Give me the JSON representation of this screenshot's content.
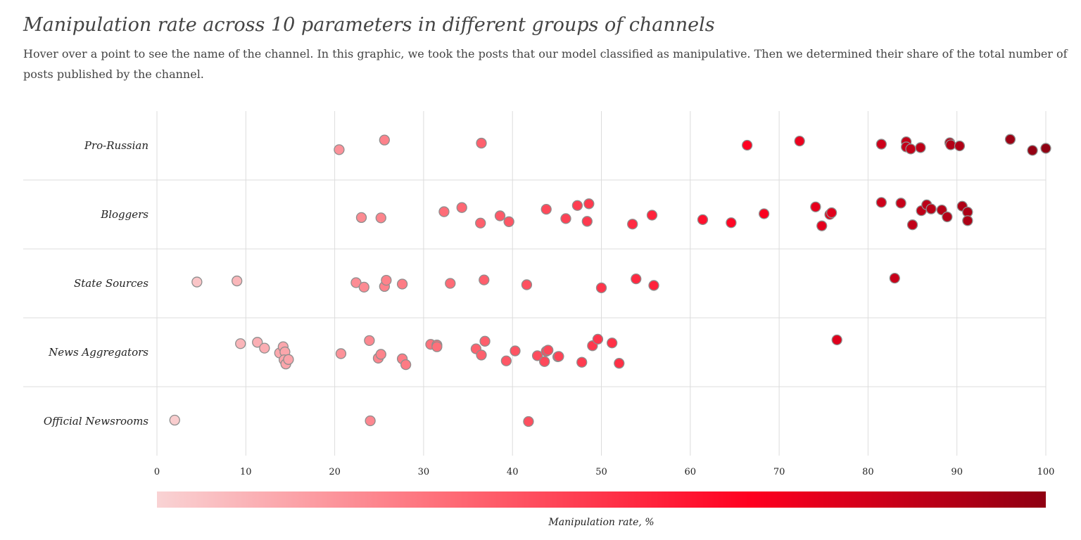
{
  "chart_data": {
    "type": "scatter",
    "title": "Manipulation rate across 10 parameters in different groups of channels",
    "subtitle": "Hover over a point to see the name of the channel. In this graphic, we took the posts that our model classified as manipulative. Then we determined their share of the total number of posts published by the channel.",
    "x_ticks": [
      0,
      10,
      20,
      30,
      40,
      50,
      60,
      70,
      80,
      90,
      100
    ],
    "xlim": [
      0,
      100
    ],
    "grid": true,
    "color_scale": {
      "title": "Manipulation rate, %",
      "stops": [
        "#f9d3d4",
        "#fe6a75",
        "#ff0020",
        "#8f0012"
      ]
    },
    "categories": [
      "Pro-Russian",
      "Bloggers",
      "State Sources",
      "News Aggregators",
      "Official Newsrooms"
    ],
    "series": [
      {
        "category": "Pro-Russian",
        "points": [
          {
            "x": 20.5,
            "jitter": -0.12
          },
          {
            "x": 25.6,
            "jitter": 0.16
          },
          {
            "x": 36.5,
            "jitter": 0.07
          },
          {
            "x": 66.4,
            "jitter": 0.01
          },
          {
            "x": 72.3,
            "jitter": 0.13
          },
          {
            "x": 81.5,
            "jitter": 0.04
          },
          {
            "x": 84.3,
            "jitter": 0.11
          },
          {
            "x": 84.3,
            "jitter": -0.04
          },
          {
            "x": 84.8,
            "jitter": -0.1
          },
          {
            "x": 85.9,
            "jitter": -0.06
          },
          {
            "x": 89.2,
            "jitter": 0.08
          },
          {
            "x": 89.3,
            "jitter": 0.02
          },
          {
            "x": 90.3,
            "jitter": -0.01
          },
          {
            "x": 96.0,
            "jitter": 0.18
          },
          {
            "x": 98.5,
            "jitter": -0.14
          },
          {
            "x": 100.0,
            "jitter": -0.08
          }
        ]
      },
      {
        "category": "Bloggers",
        "points": [
          {
            "x": 23.0,
            "jitter": -0.09
          },
          {
            "x": 25.2,
            "jitter": -0.1
          },
          {
            "x": 32.3,
            "jitter": 0.08
          },
          {
            "x": 34.3,
            "jitter": 0.2
          },
          {
            "x": 36.4,
            "jitter": -0.25
          },
          {
            "x": 38.6,
            "jitter": -0.04
          },
          {
            "x": 39.6,
            "jitter": -0.21
          },
          {
            "x": 43.8,
            "jitter": 0.15
          },
          {
            "x": 46.0,
            "jitter": -0.12
          },
          {
            "x": 47.3,
            "jitter": 0.26
          },
          {
            "x": 48.4,
            "jitter": -0.2
          },
          {
            "x": 48.6,
            "jitter": 0.31
          },
          {
            "x": 53.5,
            "jitter": -0.28
          },
          {
            "x": 55.7,
            "jitter": -0.02
          },
          {
            "x": 61.4,
            "jitter": -0.15
          },
          {
            "x": 64.6,
            "jitter": -0.24
          },
          {
            "x": 68.3,
            "jitter": 0.02
          },
          {
            "x": 74.1,
            "jitter": 0.22
          },
          {
            "x": 74.8,
            "jitter": -0.33
          },
          {
            "x": 75.7,
            "jitter": 0.0
          },
          {
            "x": 75.9,
            "jitter": 0.05
          },
          {
            "x": 81.5,
            "jitter": 0.35
          },
          {
            "x": 83.7,
            "jitter": 0.33
          },
          {
            "x": 85.0,
            "jitter": -0.3
          },
          {
            "x": 86.0,
            "jitter": 0.11
          },
          {
            "x": 86.6,
            "jitter": 0.28
          },
          {
            "x": 87.1,
            "jitter": 0.16
          },
          {
            "x": 88.3,
            "jitter": 0.13
          },
          {
            "x": 88.9,
            "jitter": -0.07
          },
          {
            "x": 90.6,
            "jitter": 0.24
          },
          {
            "x": 91.2,
            "jitter": 0.07
          },
          {
            "x": 91.2,
            "jitter": -0.18
          }
        ]
      },
      {
        "category": "State Sources",
        "points": [
          {
            "x": 4.5,
            "jitter": 0.04
          },
          {
            "x": 9.0,
            "jitter": 0.07
          },
          {
            "x": 22.4,
            "jitter": 0.02
          },
          {
            "x": 23.3,
            "jitter": -0.11
          },
          {
            "x": 25.6,
            "jitter": -0.09
          },
          {
            "x": 25.8,
            "jitter": 0.09
          },
          {
            "x": 27.6,
            "jitter": -0.02
          },
          {
            "x": 33.0,
            "jitter": 0.0
          },
          {
            "x": 36.8,
            "jitter": 0.1
          },
          {
            "x": 41.6,
            "jitter": -0.04
          },
          {
            "x": 50.0,
            "jitter": -0.13
          },
          {
            "x": 53.9,
            "jitter": 0.13
          },
          {
            "x": 55.9,
            "jitter": -0.06
          },
          {
            "x": 83.0,
            "jitter": 0.15
          }
        ]
      },
      {
        "category": "News Aggregators",
        "points": [
          {
            "x": 9.4,
            "jitter": 0.25
          },
          {
            "x": 11.3,
            "jitter": 0.29
          },
          {
            "x": 12.1,
            "jitter": 0.12
          },
          {
            "x": 13.8,
            "jitter": -0.02
          },
          {
            "x": 14.2,
            "jitter": 0.16
          },
          {
            "x": 14.4,
            "jitter": 0.01
          },
          {
            "x": 14.3,
            "jitter": -0.22
          },
          {
            "x": 14.5,
            "jitter": -0.34
          },
          {
            "x": 14.8,
            "jitter": -0.21
          },
          {
            "x": 20.7,
            "jitter": -0.04
          },
          {
            "x": 23.9,
            "jitter": 0.34
          },
          {
            "x": 24.9,
            "jitter": -0.17
          },
          {
            "x": 25.2,
            "jitter": -0.06
          },
          {
            "x": 27.6,
            "jitter": -0.19
          },
          {
            "x": 28.0,
            "jitter": -0.36
          },
          {
            "x": 30.8,
            "jitter": 0.23
          },
          {
            "x": 31.5,
            "jitter": 0.21
          },
          {
            "x": 31.5,
            "jitter": 0.16
          },
          {
            "x": 35.9,
            "jitter": 0.1
          },
          {
            "x": 36.5,
            "jitter": -0.08
          },
          {
            "x": 36.9,
            "jitter": 0.32
          },
          {
            "x": 39.3,
            "jitter": -0.25
          },
          {
            "x": 40.3,
            "jitter": 0.04
          },
          {
            "x": 42.8,
            "jitter": -0.1
          },
          {
            "x": 43.6,
            "jitter": -0.27
          },
          {
            "x": 43.8,
            "jitter": 0.03
          },
          {
            "x": 44.0,
            "jitter": 0.06
          },
          {
            "x": 45.1,
            "jitter": -0.13
          },
          {
            "x": 45.2,
            "jitter": -0.12
          },
          {
            "x": 47.8,
            "jitter": -0.29
          },
          {
            "x": 49.0,
            "jitter": 0.19
          },
          {
            "x": 49.6,
            "jitter": 0.38
          },
          {
            "x": 51.2,
            "jitter": 0.27
          },
          {
            "x": 52.0,
            "jitter": -0.32
          },
          {
            "x": 76.5,
            "jitter": 0.36
          }
        ]
      },
      {
        "category": "Official Newsrooms",
        "points": [
          {
            "x": 2.0,
            "jitter": 0.03
          },
          {
            "x": 24.0,
            "jitter": 0.01
          },
          {
            "x": 41.8,
            "jitter": -0.01
          }
        ]
      }
    ]
  }
}
